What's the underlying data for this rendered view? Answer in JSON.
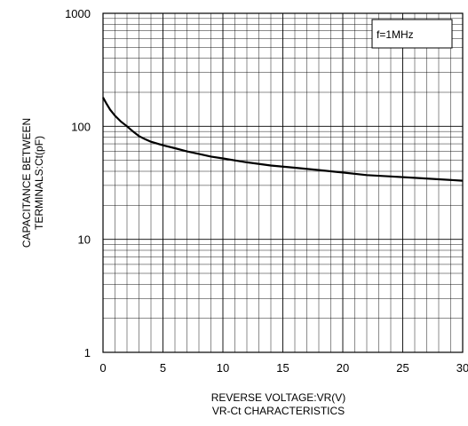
{
  "chart_data": {
    "type": "line",
    "title": "VR-Ct CHARACTERISTICS",
    "xlabel": "REVERSE VOLTAGE:VR(V)",
    "ylabel_lines": [
      "CAPACITANCE BETWEEN",
      "TERMINALS:Ct(pF)"
    ],
    "xlim": [
      0,
      30
    ],
    "ylim": [
      1,
      1000
    ],
    "yscale": "log",
    "x_ticks": [
      0,
      5,
      10,
      15,
      20,
      25,
      30
    ],
    "y_ticks": [
      1,
      10,
      100,
      1000
    ],
    "x_tick_labels": [
      "0",
      "5",
      "10",
      "15",
      "20",
      "25",
      "30"
    ],
    "y_tick_labels": [
      "1",
      "10",
      "100",
      "1000"
    ],
    "grid": true,
    "annotation": "f=1MHz",
    "series": [
      {
        "x": [
          0,
          0.3,
          0.6,
          1,
          1.5,
          2,
          2.5,
          3,
          3.5,
          4,
          5,
          6,
          7,
          8,
          9,
          10,
          12,
          14,
          16,
          18,
          20,
          22,
          24,
          26,
          28,
          30
        ],
        "y": [
          180,
          158,
          140,
          124,
          110,
          100,
          90,
          82,
          77,
          73,
          68,
          64,
          60,
          57,
          54,
          52,
          48,
          45,
          43,
          41,
          39,
          37,
          36,
          35,
          34,
          33
        ]
      }
    ]
  }
}
